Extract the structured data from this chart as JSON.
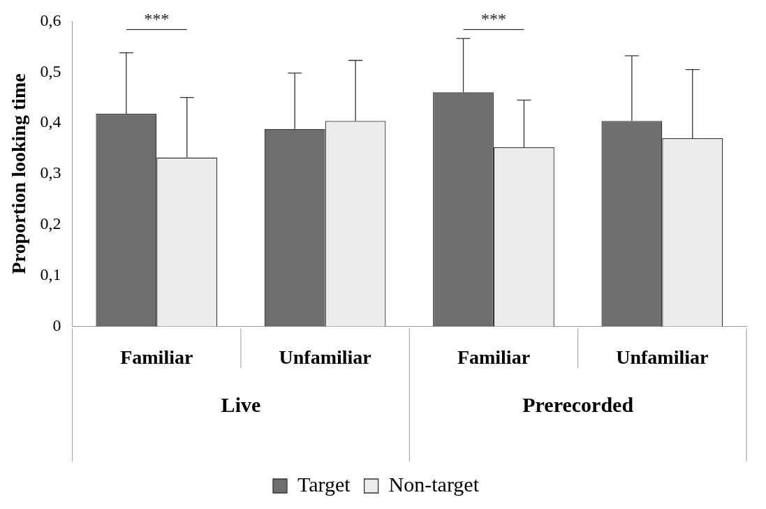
{
  "chart_data": {
    "type": "bar",
    "ylabel": "Proportion looking time",
    "categories": [
      "Familiar",
      "Unfamiliar",
      "Familiar",
      "Unfamiliar"
    ],
    "series": [
      {
        "name": "Target",
        "color": "#6e6e6e",
        "values": [
          0.418,
          0.388,
          0.46,
          0.404
        ],
        "errors": [
          [
            0.418,
            0.538
          ],
          [
            0.388,
            0.498
          ],
          [
            0.46,
            0.566
          ],
          [
            0.404,
            0.532
          ]
        ]
      },
      {
        "name": "Non-target",
        "color": "#ececec",
        "values": [
          0.332,
          0.404,
          0.352,
          0.37
        ],
        "errors": [
          [
            0.332,
            0.45
          ],
          [
            0.404,
            0.523
          ],
          [
            0.352,
            0.445
          ],
          [
            0.37,
            0.505
          ]
        ]
      }
    ],
    "ylim": [
      0,
      0.6
    ],
    "yticks": [
      0,
      {
        "value": 0.1,
        "label": "0,1"
      },
      {
        "value": 0.2,
        "label": "0,2"
      },
      {
        "value": 0.3,
        "label": "0,3"
      },
      {
        "value": 0.4,
        "label": "0,4"
      },
      {
        "value": 0.5,
        "label": "0,5"
      },
      {
        "value": 0.6,
        "label": "0,6"
      }
    ],
    "grid": false,
    "legend": "bottom",
    "annotations": [
      "Live",
      "Prerecorded",
      "***",
      "***"
    ]
  }
}
